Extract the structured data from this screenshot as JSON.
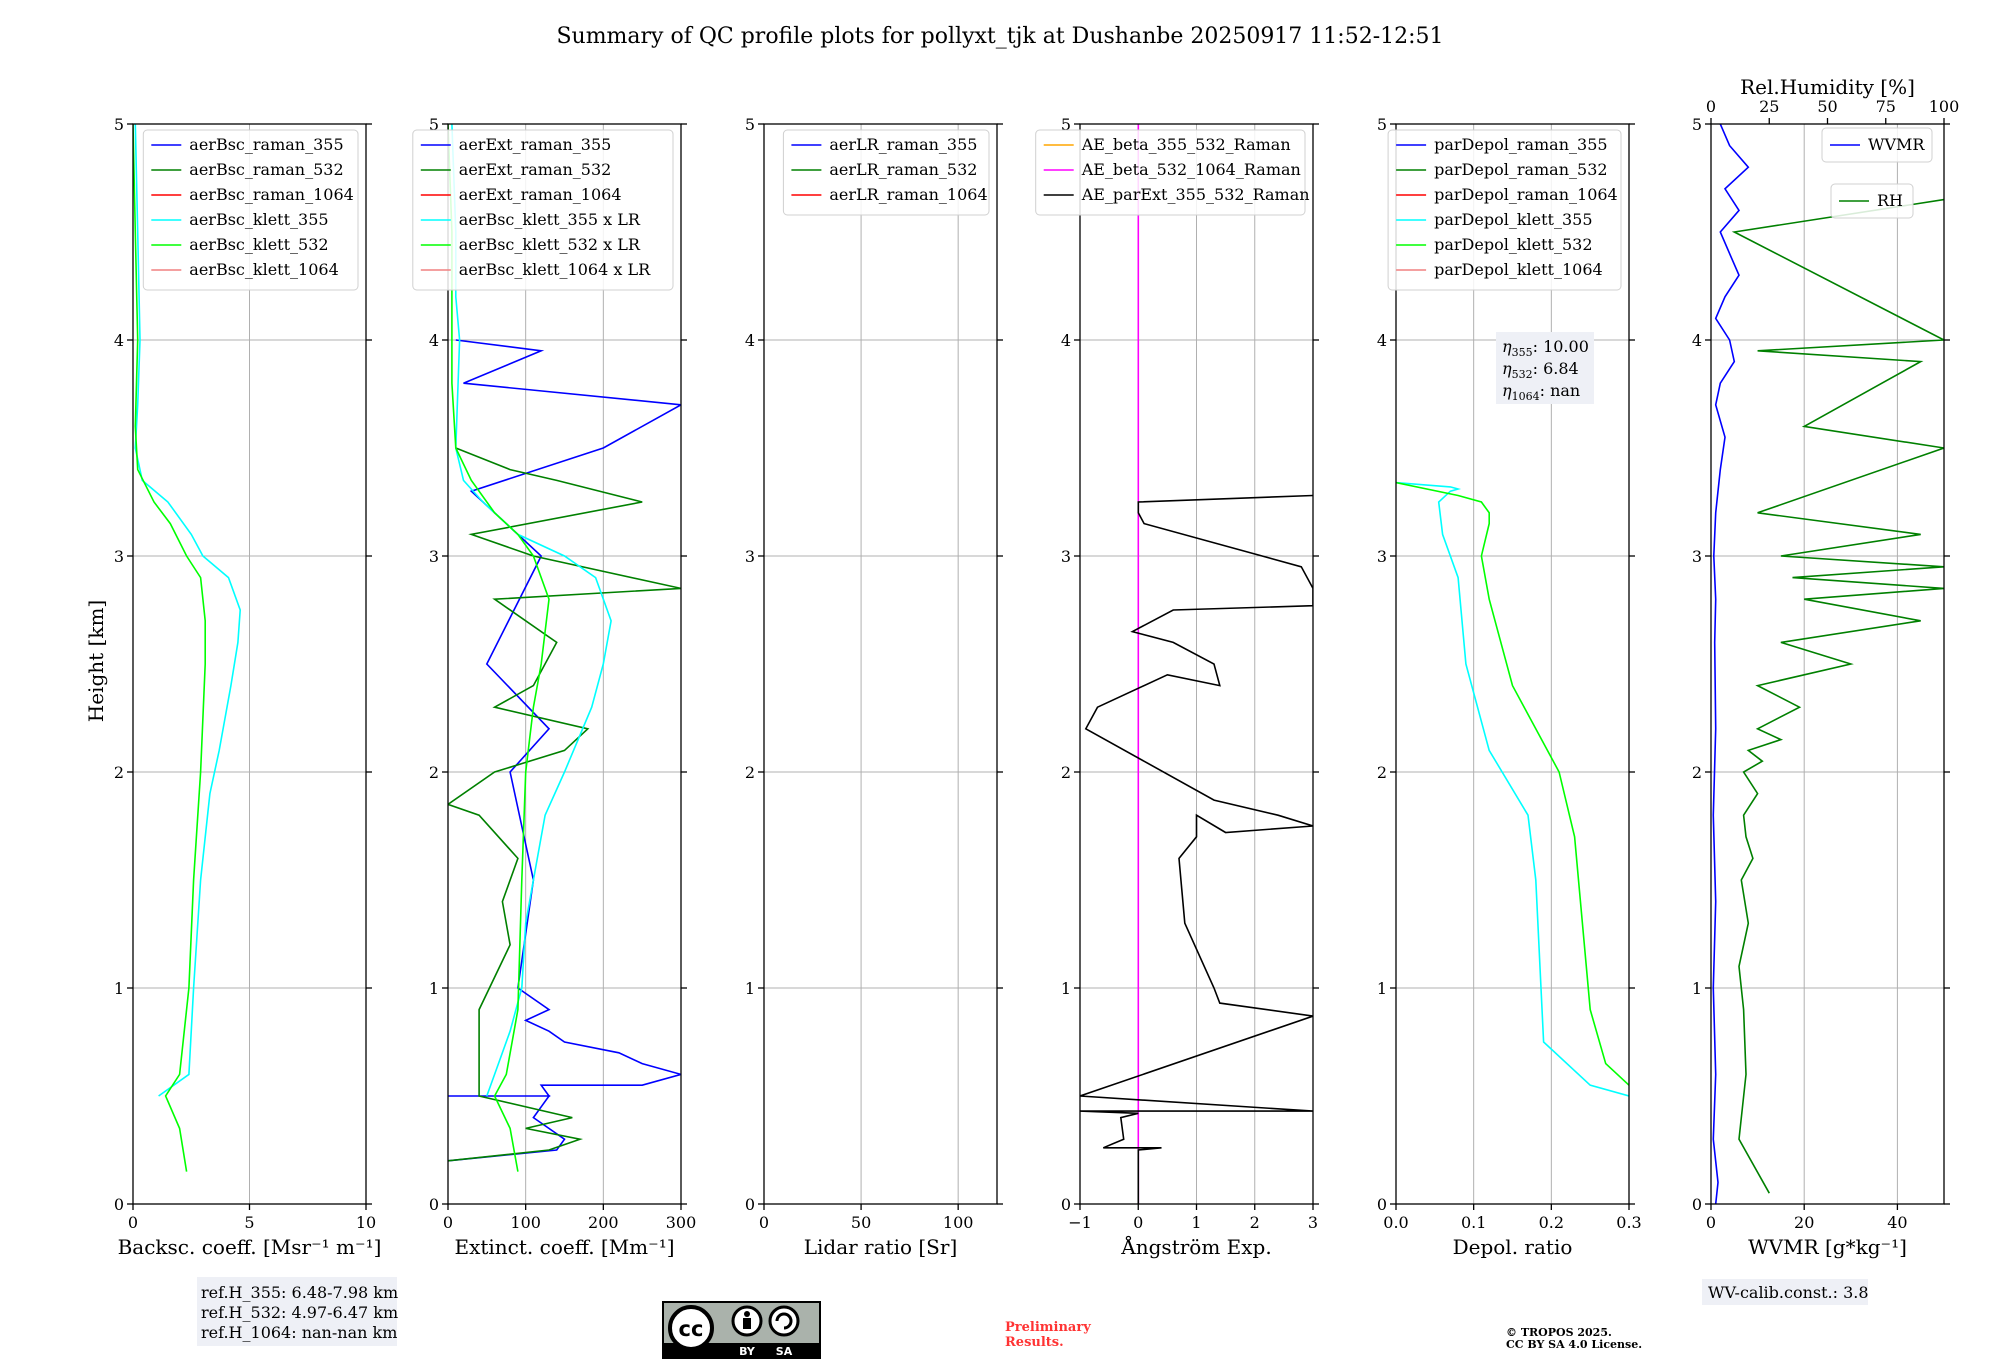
{
  "title": "Summary of QC profile plots for pollyxt_tjk at Dushanbe 20250917 11:52-12:51",
  "ylabel": "Height [km]",
  "y_ticks": [
    "0",
    "1",
    "2",
    "3",
    "4",
    "5"
  ],
  "colors": {
    "blue": "#0000ff",
    "green": "#008000",
    "red": "#ff0000",
    "cyan": "#00ffff",
    "lime": "#00ff00",
    "pink": "#f08080",
    "orange": "#ffa500",
    "magenta": "#ff00ff",
    "black": "#000000"
  },
  "notes": {
    "ref_h": [
      "ref.H_355: 6.48-7.98 km",
      "ref.H_532: 4.97-6.47 km",
      "ref.H_1064: nan-nan km"
    ],
    "wv_calib": "WV-calib.const.: 3.8",
    "preliminary": [
      "Preliminary",
      "Results."
    ],
    "copyright": [
      "© TROPOS 2025.",
      "CC BY SA 4.0 License."
    ],
    "license_badge": [
      "cc",
      "BY",
      "SA"
    ]
  },
  "chart_data": [
    {
      "type": "line",
      "xlabel": "Backsc. coeff. [Msr⁻¹ m⁻¹]",
      "xlim": [
        0,
        10
      ],
      "ylim": [
        0,
        5
      ],
      "x_ticks": [
        "0",
        "5",
        "10"
      ],
      "legend": "top-right",
      "series": [
        {
          "name": "aerBsc_raman_355",
          "color": "#0000ff",
          "x": [],
          "y": []
        },
        {
          "name": "aerBsc_raman_532",
          "color": "#008000",
          "x": [],
          "y": []
        },
        {
          "name": "aerBsc_raman_1064",
          "color": "#ff0000",
          "x": [],
          "y": []
        },
        {
          "name": "aerBsc_klett_355",
          "color": "#00ffff",
          "x": [
            1.1,
            2.4,
            2.6,
            2.9,
            3.3,
            3.7,
            4.2,
            4.5,
            4.6,
            4.1,
            3.0,
            2.5,
            1.5,
            0.4,
            0.1,
            0.2,
            0.3,
            0.2,
            0.1
          ],
          "y": [
            0.5,
            0.6,
            1.0,
            1.5,
            1.9,
            2.1,
            2.4,
            2.6,
            2.75,
            2.9,
            3.0,
            3.1,
            3.25,
            3.35,
            3.5,
            3.7,
            4.0,
            4.5,
            5.0
          ]
        },
        {
          "name": "aerBsc_klett_532",
          "color": "#00ff00",
          "x": [
            2.3,
            2.0,
            1.4,
            2.0,
            2.4,
            2.6,
            2.9,
            3.1,
            3.1,
            2.9,
            2.3,
            1.6,
            0.9,
            0.2,
            0.1,
            0.2,
            0.1,
            0.0
          ],
          "y": [
            0.15,
            0.35,
            0.5,
            0.6,
            1.0,
            1.5,
            2.0,
            2.5,
            2.7,
            2.9,
            3.0,
            3.15,
            3.25,
            3.4,
            3.6,
            4.0,
            4.5,
            5.0
          ]
        },
        {
          "name": "aerBsc_klett_1064",
          "color": "#f08080",
          "x": [],
          "y": []
        }
      ]
    },
    {
      "type": "line",
      "xlabel": "Extinct. coeff. [Mm⁻¹]",
      "xlim": [
        0,
        300
      ],
      "ylim": [
        0,
        5
      ],
      "x_ticks": [
        "0",
        "100",
        "200",
        "300"
      ],
      "legend": "top-right",
      "series": [
        {
          "name": "aerExt_raman_355",
          "color": "#0000ff",
          "x": [
            0,
            140,
            150,
            110,
            120,
            130,
            0,
            20,
            60,
            100,
            130,
            120,
            130,
            140,
            180,
            250,
            300,
            250,
            220,
            150,
            130,
            100,
            130,
            90,
            110,
            80,
            130,
            50,
            120,
            30,
            200,
            300,
            20,
            120,
            10
          ],
          "y": [
            0.2,
            0.25,
            0.3,
            0.4,
            0.45,
            0.5,
            0.5,
            0.5,
            0.5,
            0.5,
            0.5,
            0.55,
            0.55,
            0.55,
            0.55,
            0.55,
            0.6,
            0.65,
            0.7,
            0.75,
            0.8,
            0.85,
            0.9,
            1.0,
            1.5,
            2.0,
            2.2,
            2.5,
            3.0,
            3.3,
            3.5,
            3.7,
            3.8,
            3.95,
            4.0
          ]
        },
        {
          "name": "aerExt_raman_532",
          "color": "#008000",
          "x": [
            0,
            130,
            170,
            100,
            160,
            40,
            40,
            80,
            70,
            90,
            40,
            0,
            60,
            150,
            180,
            60,
            110,
            140,
            60,
            300,
            110,
            30,
            250,
            140,
            80,
            10
          ],
          "y": [
            0.2,
            0.25,
            0.3,
            0.35,
            0.4,
            0.5,
            0.9,
            1.2,
            1.4,
            1.6,
            1.8,
            1.85,
            2.0,
            2.1,
            2.2,
            2.3,
            2.4,
            2.6,
            2.8,
            2.85,
            3.0,
            3.1,
            3.25,
            3.35,
            3.4,
            3.5
          ]
        },
        {
          "name": "aerExt_raman_1064",
          "color": "#ff0000",
          "x": [],
          "y": []
        },
        {
          "name": "aerBsc_klett_355 x LR",
          "color": "#00ffff",
          "x": [
            50,
            60,
            80,
            95,
            100,
            110,
            125,
            150,
            185,
            200,
            210,
            190,
            150,
            90,
            45,
            20,
            10,
            15,
            10,
            10,
            5
          ],
          "y": [
            0.5,
            0.6,
            0.8,
            1.0,
            1.3,
            1.5,
            1.8,
            2.0,
            2.3,
            2.5,
            2.7,
            2.9,
            3.0,
            3.1,
            3.25,
            3.35,
            3.5,
            4.0,
            4.2,
            4.5,
            5.0
          ]
        },
        {
          "name": "aerBsc_klett_532 x LR",
          "color": "#00ff00",
          "x": [
            90,
            80,
            60,
            75,
            90,
            95,
            100,
            110,
            120,
            130,
            110,
            90,
            60,
            30,
            10,
            5,
            5,
            5,
            0
          ],
          "y": [
            0.15,
            0.35,
            0.5,
            0.6,
            0.9,
            1.5,
            2.0,
            2.3,
            2.5,
            2.8,
            3.0,
            3.1,
            3.2,
            3.35,
            3.5,
            3.8,
            4.0,
            4.5,
            5.0
          ]
        },
        {
          "name": "aerBsc_klett_1064 x LR",
          "color": "#f08080",
          "x": [],
          "y": []
        }
      ]
    },
    {
      "type": "line",
      "xlabel": "Lidar ratio [Sr]",
      "xlim": [
        0,
        120
      ],
      "ylim": [
        0,
        5
      ],
      "x_ticks": [
        "0",
        "50",
        "100"
      ],
      "legend": "top-right",
      "series": [
        {
          "name": "aerLR_raman_355",
          "color": "#0000ff",
          "x": [],
          "y": []
        },
        {
          "name": "aerLR_raman_532",
          "color": "#008000",
          "x": [],
          "y": []
        },
        {
          "name": "aerLR_raman_1064",
          "color": "#ff0000",
          "x": [],
          "y": []
        }
      ]
    },
    {
      "type": "line",
      "xlabel": "Ångström Exp.",
      "xlim": [
        -1,
        3
      ],
      "ylim": [
        0,
        5
      ],
      "x_ticks": [
        "−1",
        "0",
        "1",
        "2",
        "3"
      ],
      "legend": "top-right",
      "series": [
        {
          "name": "AE_beta_355_532_Raman",
          "color": "#ffa500",
          "x": [],
          "y": []
        },
        {
          "name": "AE_beta_532_1064_Raman",
          "color": "#ff00ff",
          "x": [
            0,
            0
          ],
          "y": [
            0,
            5
          ]
        },
        {
          "name": "AE_parExt_355_532_Raman",
          "color": "#000000",
          "x": [
            0,
            0,
            0.4,
            -0.6,
            -0.25,
            -0.3,
            0,
            -1,
            3,
            -1,
            3,
            1.4,
            1.3,
            0.8,
            0.7,
            1.0,
            1.0,
            1.5,
            3,
            2.4,
            1.3,
            -0.9,
            -0.7,
            0.5,
            1.4,
            1.3,
            0.6,
            -0.1,
            0.6,
            3,
            3,
            2.8,
            0.1,
            0,
            0,
            3
          ],
          "y": [
            0,
            0.25,
            0.26,
            0.26,
            0.3,
            0.4,
            0.42,
            0.43,
            0.43,
            0.5,
            0.87,
            0.93,
            1.0,
            1.3,
            1.6,
            1.7,
            1.8,
            1.72,
            1.75,
            1.8,
            1.87,
            2.2,
            2.3,
            2.45,
            2.4,
            2.5,
            2.6,
            2.65,
            2.75,
            2.77,
            2.85,
            2.95,
            3.15,
            3.2,
            3.25,
            3.28
          ]
        }
      ]
    },
    {
      "type": "line",
      "xlabel": "Depol. ratio",
      "xlim": [
        0,
        0.3
      ],
      "ylim": [
        0,
        5
      ],
      "x_ticks": [
        "0.0",
        "0.1",
        "0.2",
        "0.3"
      ],
      "legend": "top-right",
      "annotation": {
        "eta355": "10.00",
        "eta532": "6.84",
        "eta1064": "nan"
      },
      "series": [
        {
          "name": "parDepol_raman_355",
          "color": "#0000ff",
          "x": [],
          "y": []
        },
        {
          "name": "parDepol_raman_532",
          "color": "#008000",
          "x": [],
          "y": []
        },
        {
          "name": "parDepol_raman_1064",
          "color": "#ff0000",
          "x": [],
          "y": []
        },
        {
          "name": "parDepol_klett_355",
          "color": "#00ffff",
          "x": [
            0.3,
            0.25,
            0.19,
            0.18,
            0.17,
            0.12,
            0.09,
            0.08,
            0.06,
            0.055,
            0.07,
            0.08,
            0.07,
            0.0
          ],
          "y": [
            0.5,
            0.55,
            0.75,
            1.5,
            1.8,
            2.1,
            2.5,
            2.9,
            3.1,
            3.25,
            3.3,
            3.31,
            3.32,
            3.34
          ]
        },
        {
          "name": "parDepol_klett_532",
          "color": "#00ff00",
          "x": [
            0.3,
            0.27,
            0.25,
            0.24,
            0.23,
            0.21,
            0.15,
            0.12,
            0.11,
            0.12,
            0.12,
            0.11,
            0.08,
            0.0
          ],
          "y": [
            0.55,
            0.65,
            0.9,
            1.3,
            1.7,
            2.0,
            2.4,
            2.8,
            3.0,
            3.15,
            3.2,
            3.25,
            3.28,
            3.34
          ]
        },
        {
          "name": "parDepol_klett_1064",
          "color": "#f08080",
          "x": [],
          "y": []
        }
      ]
    },
    {
      "type": "line",
      "xlabel": "WVMR [g*kg⁻¹]",
      "xlim": [
        0,
        50
      ],
      "ylim": [
        0,
        5
      ],
      "x_ticks": [
        "0",
        "20",
        "40"
      ],
      "x2label": "Rel.Humidity [%]",
      "x2lim": [
        0,
        100
      ],
      "x2_ticks": [
        "0",
        "25",
        "50",
        "75",
        "100"
      ],
      "series": [
        {
          "name": "WVMR",
          "color": "#0000ff",
          "axis": "bottom",
          "x": [
            1,
            1.5,
            0.5,
            1,
            0.5,
            1,
            0.5,
            1,
            0.8,
            1,
            0.6,
            1,
            2,
            3,
            1,
            2,
            5,
            4,
            1,
            3,
            6,
            4,
            2,
            6,
            3,
            8,
            4,
            2
          ],
          "y": [
            0,
            0.1,
            0.3,
            0.6,
            1.0,
            1.4,
            1.8,
            2.2,
            2.6,
            2.8,
            3.0,
            3.2,
            3.4,
            3.55,
            3.7,
            3.8,
            3.9,
            4.0,
            4.1,
            4.2,
            4.3,
            4.4,
            4.5,
            4.6,
            4.7,
            4.8,
            4.9,
            5.0
          ]
        },
        {
          "name": "RH",
          "color": "#008000",
          "axis": "top",
          "x": [
            25,
            12,
            15,
            14,
            12,
            16,
            13,
            18,
            15,
            14,
            20,
            14,
            22,
            16,
            30,
            20,
            38,
            20,
            60,
            30,
            90,
            40,
            100,
            35,
            100,
            30,
            90,
            20,
            100,
            40,
            90,
            20,
            100,
            10,
            100
          ],
          "y": [
            0.05,
            0.3,
            0.6,
            0.9,
            1.1,
            1.3,
            1.5,
            1.6,
            1.7,
            1.8,
            1.9,
            2.0,
            2.05,
            2.1,
            2.15,
            2.2,
            2.3,
            2.4,
            2.5,
            2.6,
            2.7,
            2.8,
            2.85,
            2.9,
            2.95,
            3.0,
            3.1,
            3.2,
            3.5,
            3.6,
            3.9,
            3.95,
            4.0,
            4.5,
            4.65
          ]
        }
      ]
    }
  ]
}
